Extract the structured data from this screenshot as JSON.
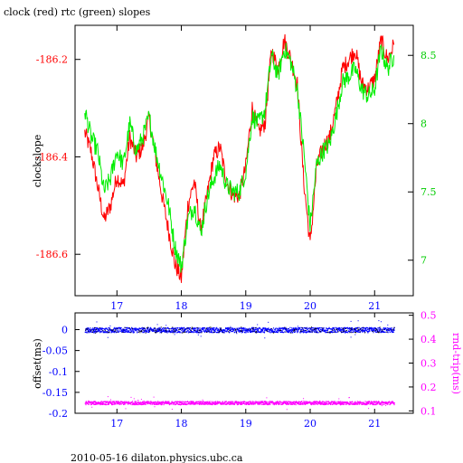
{
  "title": "clock (red) rtc (green) slopes",
  "footer": "2010-05-16 dilaton.physics.ubc.ca",
  "colors": {
    "red": "#ff0000",
    "green": "#00ee00",
    "blue": "#0000ff",
    "magenta": "#ff00ff",
    "black": "#000000"
  },
  "chart_data": [
    {
      "type": "line",
      "ylabel": "clockslope",
      "xlim": [
        16.35,
        21.6
      ],
      "x_ticks": [
        17,
        18,
        19,
        20,
        21
      ],
      "x_tick_labels": [
        "17",
        "18",
        "19",
        "20",
        "21"
      ],
      "y_left_lim": [
        -186.685,
        -186.13
      ],
      "y_left_ticks": [
        -186.2,
        -186.4,
        -186.6
      ],
      "y_left_tick_labels": [
        "-186.2",
        "-186.4",
        "-186.6"
      ],
      "y_right_lim": [
        6.74,
        8.72
      ],
      "y_right_ticks": [
        8.5,
        8,
        7.5,
        7
      ],
      "y_right_tick_labels": [
        "8.5",
        "8",
        "7.5",
        "7"
      ],
      "series": [
        {
          "name": "clock",
          "color": "red",
          "axis": "left",
          "x": [
            16.5,
            16.6,
            16.7,
            16.8,
            16.9,
            17.0,
            17.1,
            17.2,
            17.3,
            17.4,
            17.5,
            17.6,
            17.7,
            17.8,
            17.9,
            18.0,
            18.1,
            18.2,
            18.3,
            18.4,
            18.5,
            18.6,
            18.7,
            18.8,
            18.9,
            19.0,
            19.1,
            19.2,
            19.3,
            19.4,
            19.5,
            19.6,
            19.7,
            19.8,
            19.9,
            20.0,
            20.1,
            20.2,
            20.3,
            20.4,
            20.5,
            20.6,
            20.7,
            20.8,
            20.9,
            21.0,
            21.1,
            21.2,
            21.3
          ],
          "y": [
            -186.35,
            -186.39,
            -186.46,
            -186.53,
            -186.5,
            -186.44,
            -186.46,
            -186.36,
            -186.4,
            -186.38,
            -186.32,
            -186.4,
            -186.48,
            -186.55,
            -186.62,
            -186.65,
            -186.5,
            -186.45,
            -186.55,
            -186.48,
            -186.4,
            -186.38,
            -186.45,
            -186.48,
            -186.48,
            -186.42,
            -186.3,
            -186.35,
            -186.33,
            -186.18,
            -186.22,
            -186.16,
            -186.2,
            -186.25,
            -186.45,
            -186.58,
            -186.42,
            -186.38,
            -186.36,
            -186.3,
            -186.22,
            -186.2,
            -186.18,
            -186.25,
            -186.26,
            -186.24,
            -186.16,
            -186.2,
            -186.17
          ]
        },
        {
          "name": "rtc",
          "color": "green",
          "axis": "right",
          "x": [
            16.5,
            16.6,
            16.7,
            16.8,
            16.9,
            17.0,
            17.1,
            17.2,
            17.3,
            17.4,
            17.5,
            17.6,
            17.7,
            17.8,
            17.9,
            18.0,
            18.1,
            18.2,
            18.3,
            18.4,
            18.5,
            18.6,
            18.7,
            18.8,
            18.9,
            19.0,
            19.1,
            19.2,
            19.3,
            19.4,
            19.5,
            19.6,
            19.7,
            19.8,
            19.9,
            20.0,
            20.1,
            20.2,
            20.3,
            20.4,
            20.5,
            20.6,
            20.7,
            20.8,
            20.9,
            21.0,
            21.1,
            21.2,
            21.3
          ],
          "y": [
            8.1,
            7.9,
            7.8,
            7.5,
            7.6,
            7.8,
            7.7,
            8.0,
            7.8,
            7.9,
            8.05,
            7.8,
            7.6,
            7.4,
            7.1,
            6.95,
            7.3,
            7.4,
            7.2,
            7.45,
            7.6,
            7.7,
            7.55,
            7.5,
            7.5,
            7.65,
            8.05,
            8.0,
            8.1,
            8.5,
            8.35,
            8.55,
            8.45,
            8.25,
            7.8,
            7.25,
            7.7,
            7.8,
            7.85,
            8.05,
            8.3,
            8.35,
            8.4,
            8.25,
            8.2,
            8.25,
            8.55,
            8.4,
            8.5
          ]
        }
      ]
    },
    {
      "type": "scatter",
      "ylabel_left": "offset(ms)",
      "ylabel_right": "rnd-trip(ms)",
      "xlim": [
        16.35,
        21.6
      ],
      "x_ticks": [
        17,
        18,
        19,
        20,
        21
      ],
      "x_tick_labels": [
        "17",
        "18",
        "19",
        "20",
        "21"
      ],
      "y_left_lim": [
        -0.2,
        0.04
      ],
      "y_left_ticks": [
        0,
        -0.05,
        -0.1,
        -0.15,
        -0.2
      ],
      "y_left_tick_labels": [
        "0",
        "-0.05",
        "-0.1",
        "-0.15",
        "-0.2"
      ],
      "y_right_lim": [
        0.09,
        0.51
      ],
      "y_right_ticks": [
        0.5,
        0.4,
        0.3,
        0.2,
        0.1
      ],
      "y_right_tick_labels": [
        "0.5",
        "0.4",
        "0.3",
        "0.2",
        "0.1"
      ],
      "series": [
        {
          "name": "offset",
          "color": "blue",
          "axis": "left",
          "x_range": [
            16.5,
            21.3
          ],
          "y_center": 0.0,
          "y_spread": 0.006
        },
        {
          "name": "rnd-trip",
          "color": "magenta",
          "axis": "right",
          "x_range": [
            16.5,
            21.3
          ],
          "y_center": 0.135,
          "y_spread": 0.007
        }
      ]
    }
  ]
}
